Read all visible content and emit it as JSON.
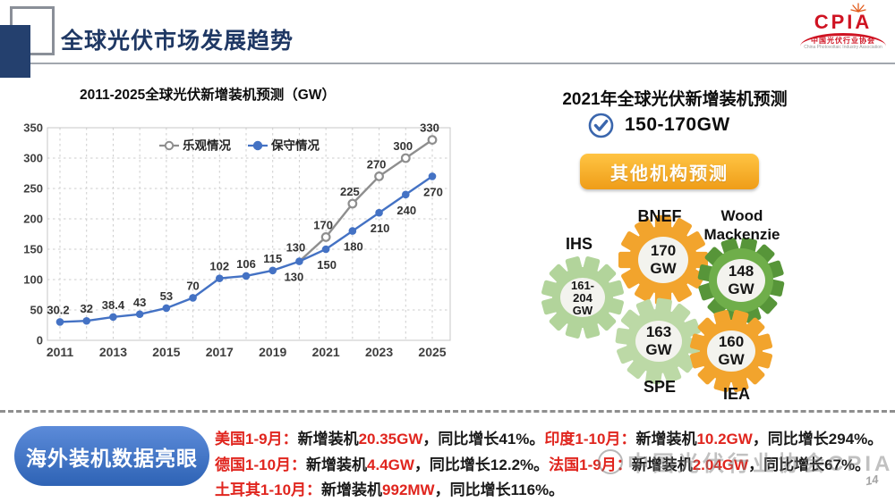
{
  "header": {
    "title": "全球光伏市场发展趋势",
    "logo": {
      "acronym": "CPIA",
      "cn": "中国光伏行业协会",
      "en": "China Photovoltaic Industry Association"
    }
  },
  "chart_data": {
    "type": "line",
    "title": "2011-2025全球光伏新增装机预测（GW）",
    "x": [
      2011,
      2012,
      2013,
      2014,
      2015,
      2016,
      2017,
      2018,
      2019,
      2020,
      2021,
      2022,
      2023,
      2024,
      2025
    ],
    "xticks": [
      2011,
      2013,
      2015,
      2017,
      2019,
      2021,
      2023,
      2025
    ],
    "ylim": [
      0,
      350
    ],
    "ytick_step": 50,
    "grid": true,
    "legend_position": "top-inside",
    "series": [
      {
        "name": "乐观情况",
        "marker": "open",
        "color": "#8e8e8e",
        "values": [
          30.2,
          32,
          38.4,
          43,
          53,
          70,
          102,
          106,
          115,
          130,
          170,
          225,
          270,
          300,
          330
        ]
      },
      {
        "name": "保守情况",
        "marker": "filled",
        "color": "#4472c4",
        "values": [
          30.2,
          32,
          38.4,
          43,
          53,
          70,
          102,
          106,
          115,
          130,
          150,
          180,
          210,
          240,
          270
        ]
      }
    ],
    "divergence_start_year": 2020
  },
  "right_panel": {
    "heading": "2021年全球光伏新增装机预测",
    "check_icon": "check-circle",
    "forecast_value": "150-170GW",
    "button_label": "其他机构预测",
    "orgs": [
      {
        "name": "IHS",
        "name_lines": [
          "IHS"
        ],
        "value": "161-204 GW",
        "value_lines": [
          "161-",
          "204",
          "GW"
        ],
        "gear_color": "#b2d49b"
      },
      {
        "name": "BNEF",
        "name_lines": [
          "BNEF"
        ],
        "value": "170 GW",
        "value_lines": [
          "170",
          "GW"
        ],
        "gear_color": "#f2a42d"
      },
      {
        "name": "Wood Mackenzie",
        "name_lines": [
          "Wood",
          "Mackenzie"
        ],
        "value": "148 GW",
        "value_lines": [
          "148",
          "GW"
        ],
        "gear_color": "#6fae4a"
      },
      {
        "name": "SPE",
        "name_lines": [
          "SPE"
        ],
        "value": "163 GW",
        "value_lines": [
          "163",
          "GW"
        ],
        "gear_color": "#bcd9a6"
      },
      {
        "name": "IEA",
        "name_lines": [
          "IEA"
        ],
        "value": "160 GW",
        "value_lines": [
          "160",
          "GW"
        ],
        "gear_color": "#f2a42d"
      }
    ]
  },
  "highlights": {
    "badge": "海外装机数据亮眼",
    "lines": [
      [
        {
          "t": "美国1-9月：",
          "c": "r"
        },
        {
          "t": "新增装机",
          "c": "k"
        },
        {
          "t": "20.35GW",
          "c": "r"
        },
        {
          "t": "，同比增长41%。",
          "c": "k"
        },
        {
          "t": "印度1-10月：",
          "c": "r"
        },
        {
          "t": "新增装机",
          "c": "k"
        },
        {
          "t": "10.2GW",
          "c": "r"
        },
        {
          "t": "，同比增长294%。",
          "c": "k"
        }
      ],
      [
        {
          "t": "德国1-10月：",
          "c": "r"
        },
        {
          "t": "新增装机",
          "c": "k"
        },
        {
          "t": "4.4GW",
          "c": "r"
        },
        {
          "t": "，同比增长12.2%。",
          "c": "k"
        },
        {
          "t": "法国1-9月：",
          "c": "r"
        },
        {
          "t": "新增装机",
          "c": "k"
        },
        {
          "t": "2.04GW",
          "c": "r"
        },
        {
          "t": "，同比增长67%。",
          "c": "k"
        }
      ],
      [
        {
          "t": "土耳其1-10月：",
          "c": "r"
        },
        {
          "t": "新增装机",
          "c": "k"
        },
        {
          "t": "992MW",
          "c": "r"
        },
        {
          "t": "，同比增长116%。",
          "c": "k"
        }
      ]
    ]
  },
  "watermark": {
    "text": "中国光伏行业协会CPIA"
  },
  "page_number": "14",
  "colors": {
    "accent_navy": "#1f3864",
    "line_blue": "#4472c4",
    "line_gray": "#8e8e8e",
    "button_orange": "#f5a623",
    "badge_blue": "#3f74c8",
    "red_text": "#e0251e",
    "gear_light_green": "#b2d49b",
    "gear_dark_green": "#6fae4a",
    "gear_orange": "#f2a42d",
    "logo_red": "#cf1322"
  }
}
